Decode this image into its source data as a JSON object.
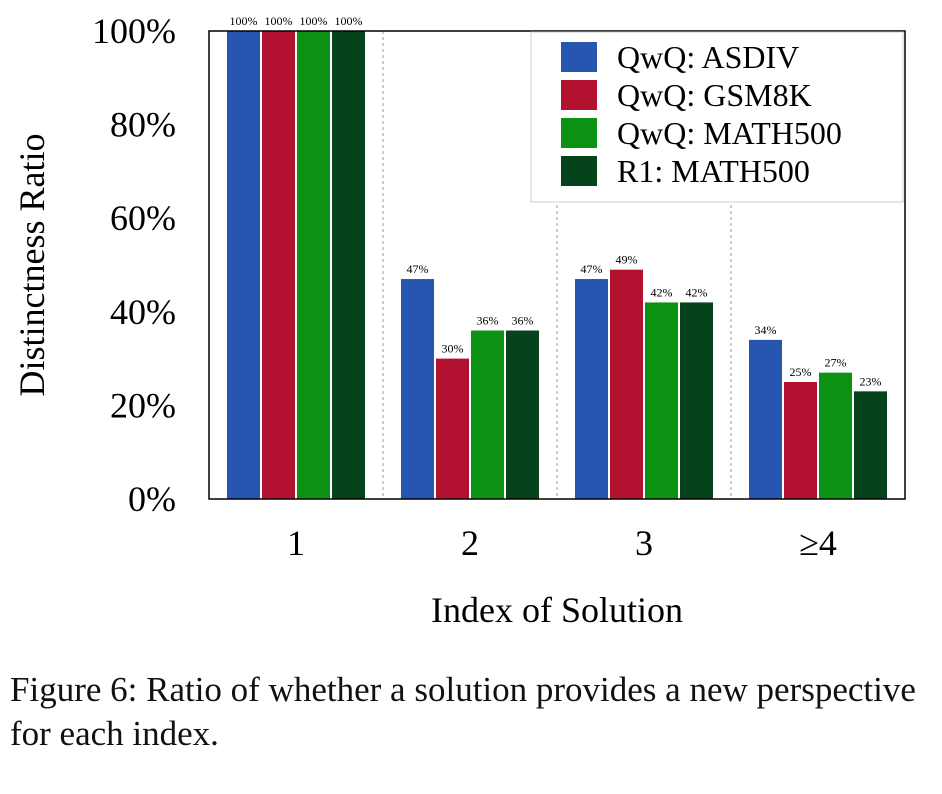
{
  "chart_data": {
    "type": "bar",
    "title": "",
    "xlabel": "Index of Solution",
    "ylabel": "Distinctness Ratio",
    "categories": [
      "1",
      "2",
      "3",
      "≥4"
    ],
    "ylim": [
      0,
      100
    ],
    "yticks": [
      "0%",
      "20%",
      "40%",
      "60%",
      "80%",
      "100%"
    ],
    "ytick_values": [
      0,
      20,
      40,
      60,
      80,
      100
    ],
    "series": [
      {
        "name": "QwQ: ASDIV",
        "color": "#2656b0",
        "values": [
          100,
          47,
          47,
          34
        ],
        "labels": [
          "100%",
          "47%",
          "47%",
          "34%"
        ]
      },
      {
        "name": "QwQ: GSM8K",
        "color": "#b2112f",
        "values": [
          100,
          30,
          49,
          25
        ],
        "labels": [
          "100%",
          "30%",
          "49%",
          "25%"
        ]
      },
      {
        "name": "QwQ: MATH500",
        "color": "#0c9213",
        "values": [
          100,
          36,
          42,
          27
        ],
        "labels": [
          "100%",
          "36%",
          "42%",
          "27%"
        ]
      },
      {
        "name": "R1: MATH500",
        "color": "#06421b",
        "values": [
          100,
          36,
          42,
          23
        ],
        "labels": [
          "100%",
          "36%",
          "42%",
          "23%"
        ]
      }
    ],
    "legend_position": "top-right",
    "grid": false,
    "group_separators": "dotted"
  },
  "caption": "Figure 6: Ratio of whether a solution provides a new perspective for each index."
}
